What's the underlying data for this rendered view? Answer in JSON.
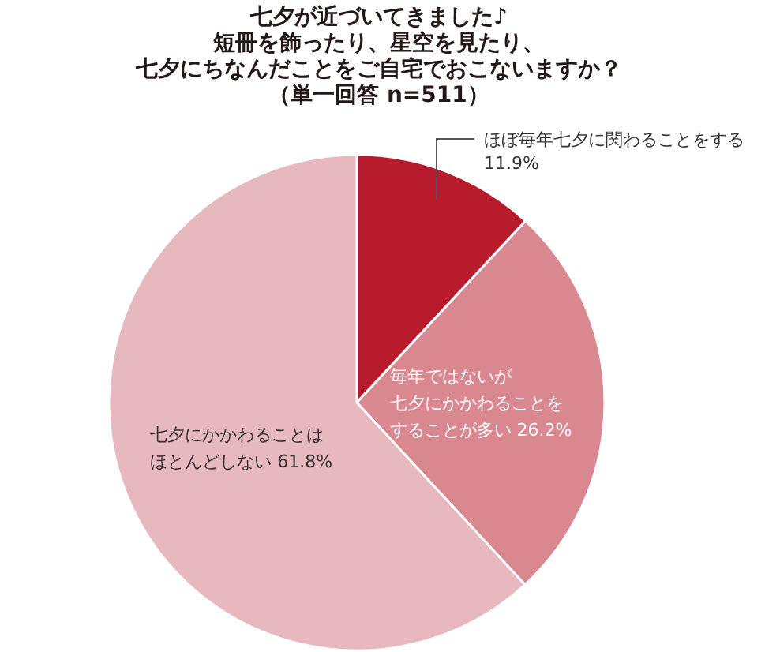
{
  "chart_data": {
    "type": "pie",
    "title": "七夕が近づいてきました♪短冊を飾ったり、星空を見たり、七夕にちなんだことをご自宅でおこないますか？（単一回答 n=511）",
    "categories": [
      "ほぼ毎年七夕に関わることをする",
      "毎年ではないが七夕にかかわることをすることが多い",
      "七夕にかかわることはほとんどしない"
    ],
    "values": [
      11.9,
      26.2,
      61.8
    ],
    "colors": [
      "#b81c2c",
      "#d98890",
      "#e8b8bf"
    ],
    "value_labels": [
      "11.9%",
      "26.2%",
      "61.8%"
    ]
  }
}
